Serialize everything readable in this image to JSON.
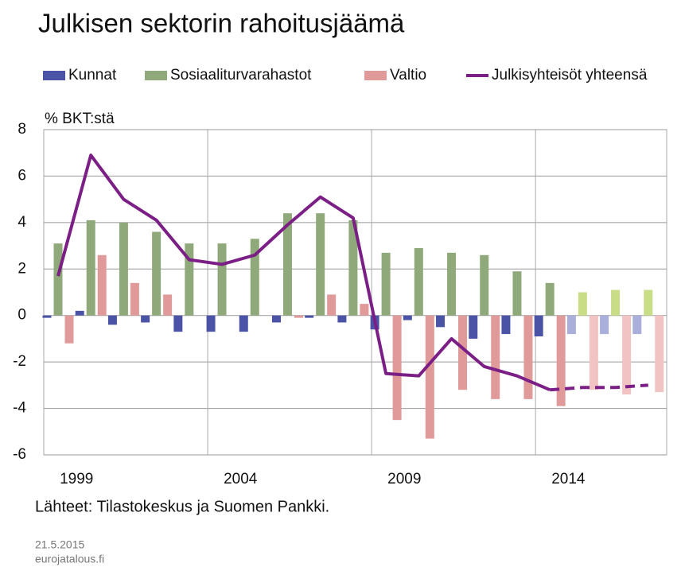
{
  "chart_data": {
    "type": "bar-line",
    "title": "Julkisen sektorin rahoitusjäämä",
    "y_label": "% BKT:stä",
    "source": "Lähteet: Tilastokeskus ja Suomen Pankki.",
    "date": "21.5.2015",
    "site": "eurojatalous.fi",
    "categories": [
      null,
      "1999",
      null,
      null,
      null,
      null,
      "2004",
      null,
      null,
      null,
      null,
      "2009",
      null,
      null,
      null,
      null,
      "2014",
      null,
      null
    ],
    "forecast_from": "2014",
    "ylim": [
      -6,
      8
    ],
    "yticks": [
      -6,
      -4,
      -2,
      0,
      2,
      4,
      6,
      8
    ],
    "grid": true,
    "series": [
      {
        "name": "Kunnat",
        "type": "bar",
        "color": "#4b53a6",
        "forecast_color": "#a9aedb",
        "values": [
          -0.1,
          0.2,
          -0.4,
          -0.3,
          -0.7,
          -0.7,
          -0.7,
          -0.3,
          -0.1,
          -0.3,
          -0.6,
          -0.2,
          -0.5,
          -1.0,
          -0.8,
          -0.9,
          -0.8,
          -0.8,
          -0.8
        ]
      },
      {
        "name": "Sosiaaliturvarahastot",
        "type": "bar",
        "color": "#8fa97a",
        "forecast_color": "#c9dc86",
        "values": [
          3.1,
          4.1,
          4.0,
          3.6,
          3.1,
          3.1,
          3.3,
          4.4,
          4.4,
          4.1,
          2.7,
          2.9,
          2.7,
          2.6,
          1.9,
          1.4,
          1.0,
          1.1,
          1.1
        ]
      },
      {
        "name": "Valtio",
        "type": "bar",
        "color": "#e09a9a",
        "forecast_color": "#f1c3c3",
        "values": [
          -1.2,
          2.6,
          1.4,
          0.9,
          0.0,
          0.0,
          0.0,
          -0.1,
          0.9,
          0.5,
          -4.5,
          -5.3,
          -3.2,
          -3.6,
          -3.6,
          -3.9,
          -3.2,
          -3.4,
          -3.3
        ]
      },
      {
        "name": "Julkisyhteisöt yhteensä",
        "type": "line",
        "color": "#7b1f86",
        "values": [
          1.7,
          6.9,
          5.0,
          4.1,
          2.4,
          2.2,
          2.6,
          3.9,
          5.1,
          4.2,
          -2.5,
          -2.6,
          -1.0,
          -2.2,
          -2.6,
          -3.2,
          -3.1,
          -3.1,
          -3.0
        ]
      }
    ]
  }
}
